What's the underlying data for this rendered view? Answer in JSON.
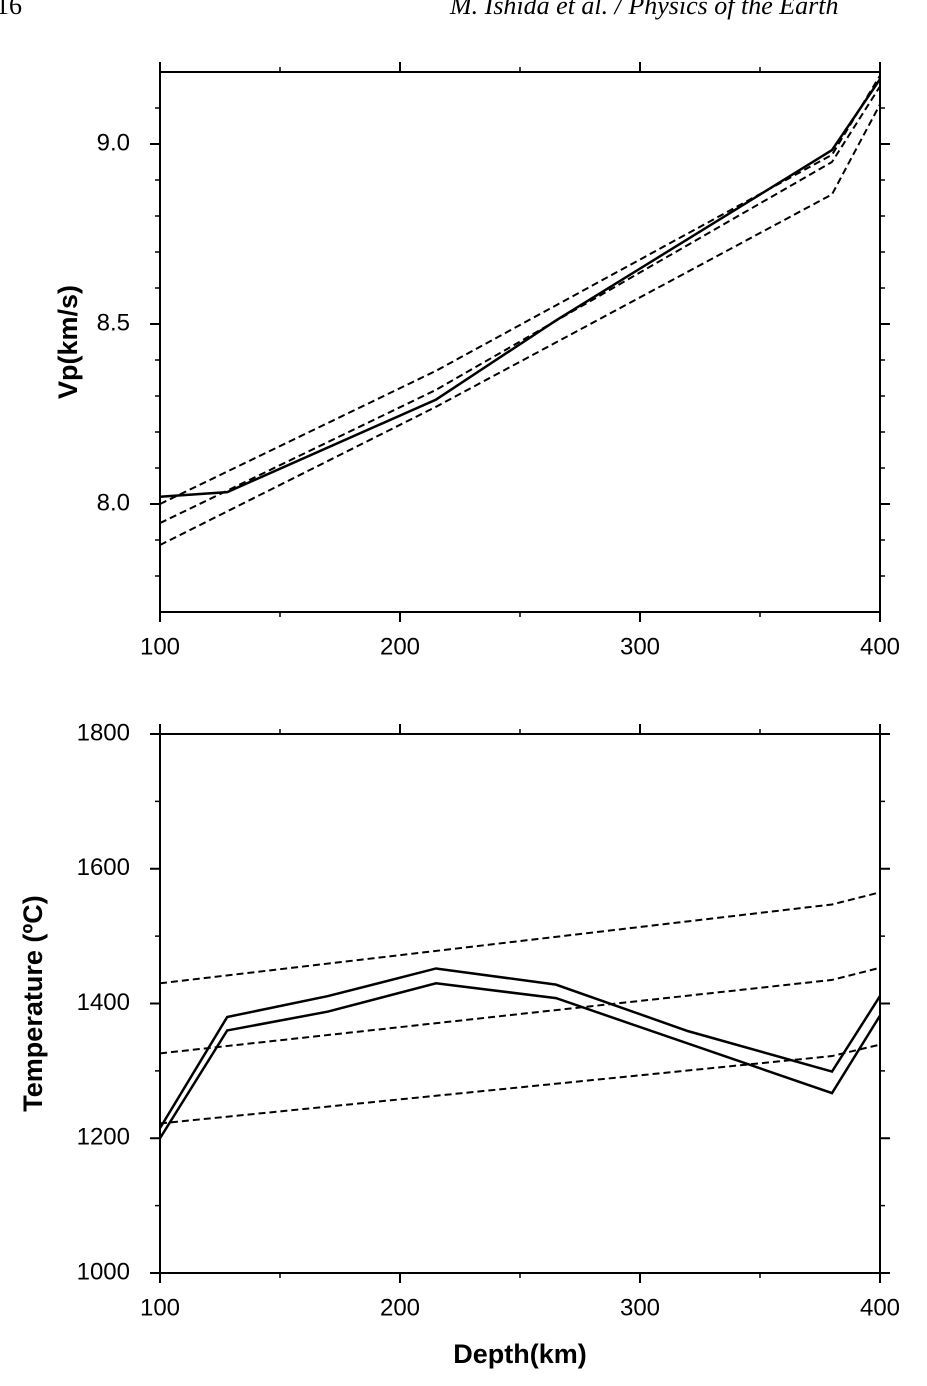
{
  "header": {
    "page": "16",
    "running_title": "M. Ishida et al. / Physics of the Earth"
  },
  "chart_data": [
    {
      "type": "line",
      "ylabel": "Vp(km/s)",
      "xlim": [
        100,
        400
      ],
      "xticks": [
        100,
        200,
        300,
        400
      ],
      "xminorticks": [
        150,
        250,
        350
      ],
      "ylim": [
        7.7,
        9.2
      ],
      "yticks": [
        {
          "value": 8.0,
          "label": "8.0"
        },
        8.5,
        {
          "value": 9.0,
          "label": "9.0"
        }
      ],
      "yminorticks": [
        7.8,
        7.9,
        8.1,
        8.2,
        8.3,
        8.4,
        8.6,
        8.7,
        8.8,
        8.9,
        9.1
      ],
      "series": [
        {
          "color": "#000000",
          "dashed": false,
          "x": [
            100,
            128,
            215,
            265,
            380,
            400
          ],
          "values": [
            8.02,
            8.033,
            8.29,
            8.51,
            8.983,
            9.18
          ]
        },
        {
          "color": "#000000",
          "dashed": true,
          "x": [
            100,
            215,
            380,
            400
          ],
          "values": [
            8.0,
            8.37,
            8.97,
            9.19
          ]
        },
        {
          "color": "#000000",
          "dashed": true,
          "x": [
            100,
            215,
            380,
            400
          ],
          "values": [
            7.947,
            8.317,
            8.95,
            9.16
          ]
        },
        {
          "color": "#000000",
          "dashed": true,
          "x": [
            100,
            215,
            380,
            400
          ],
          "values": [
            7.886,
            8.27,
            8.86,
            9.11
          ]
        }
      ]
    },
    {
      "type": "line",
      "ylabel": "Temperature (ºC)",
      "xlabel": "Depth(km)",
      "xlim": [
        100,
        400
      ],
      "xticks": [
        100,
        200,
        300,
        400
      ],
      "xminorticks": [
        150,
        250,
        350
      ],
      "ylim": [
        1000,
        1800
      ],
      "yticks": [
        1000,
        1200,
        1400,
        1600,
        1800
      ],
      "yminorticks": [
        1100,
        1300,
        1500,
        1700
      ],
      "series": [
        {
          "color": "#000000",
          "dashed": false,
          "x": [
            100,
            128,
            170,
            215,
            265,
            320,
            380,
            400
          ],
          "values": [
            1215,
            1380,
            1411,
            1452,
            1428,
            1359,
            1299,
            1411
          ]
        },
        {
          "color": "#000000",
          "dashed": false,
          "x": [
            100,
            128,
            170,
            215,
            265,
            380,
            400
          ],
          "values": [
            1200,
            1360,
            1388,
            1430,
            1408,
            1267,
            1382
          ]
        },
        {
          "color": "#000000",
          "dashed": true,
          "x": [
            100,
            380,
            400
          ],
          "values": [
            1430,
            1547,
            1565
          ]
        },
        {
          "color": "#000000",
          "dashed": true,
          "x": [
            100,
            380,
            400
          ],
          "values": [
            1326,
            1435,
            1453
          ]
        },
        {
          "color": "#000000",
          "dashed": true,
          "x": [
            100,
            380,
            400
          ],
          "values": [
            1222,
            1322,
            1339
          ]
        }
      ]
    }
  ]
}
